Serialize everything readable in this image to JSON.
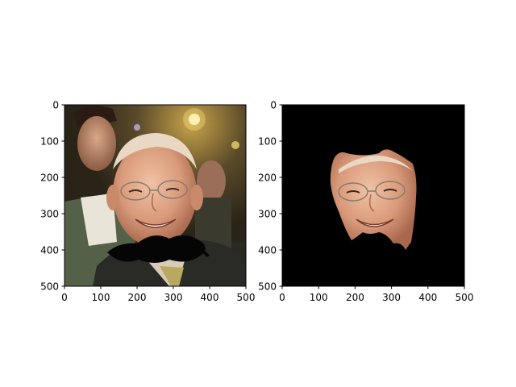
{
  "figure": {
    "background": "#ffffff"
  },
  "chart_data": [
    {
      "type": "heatmap",
      "title": "",
      "xlabel": "",
      "ylabel": "",
      "xlim": [
        0,
        500
      ],
      "ylim": [
        500,
        0
      ],
      "xticks": [
        "0",
        "100",
        "200",
        "300",
        "400",
        "500"
      ],
      "yticks": [
        "0",
        "100",
        "200",
        "300",
        "400",
        "500"
      ],
      "grid": false,
      "image": "photo of a smiling older man with glasses, a black mustache overlay drawn below his face around y≈400, another man behind on the left"
    },
    {
      "type": "heatmap",
      "title": "",
      "xlabel": "",
      "ylabel": "",
      "xlim": [
        0,
        500
      ],
      "ylim": [
        500,
        0
      ],
      "xticks": [
        "0",
        "100",
        "200",
        "300",
        "400",
        "500"
      ],
      "yticks": [
        "0",
        "100",
        "200",
        "300",
        "400",
        "500"
      ],
      "grid": false,
      "image": "face-segmented crop of the same man on a black background; black mustache region cut out at the chin"
    }
  ]
}
